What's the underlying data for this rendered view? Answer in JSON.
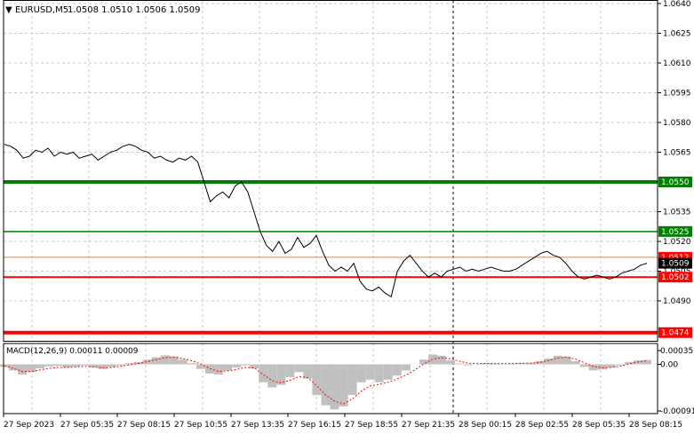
{
  "header": {
    "symbol": "EURUSD,M5",
    "ohlc": "1.0508 1.0510 1.0506 1.0509"
  },
  "macd_header": {
    "label": "MACD(12,26,9) 0.00011 0.00009"
  },
  "colors": {
    "grid": "#c8c8c8",
    "price_line": "#000000",
    "support_green": "#007f00",
    "support_red": "#ff0000",
    "macd_hist": "#c0c0c0",
    "macd_signal": "#ff0000",
    "bid_label": "#000000",
    "ask_line": "#ff7f27"
  },
  "chart_data": [
    {
      "type": "line",
      "title": "EURUSD,M5",
      "ylim": [
        1.0474,
        1.064
      ],
      "y_ticks": [
        "1.0640",
        "1.0625",
        "1.0610",
        "1.0595",
        "1.0580",
        "1.0565",
        "1.0550",
        "1.0535",
        "1.0520",
        "1.0505",
        "1.0490"
      ],
      "x_ticks": [
        "27 Sep 2023",
        "27 Sep 05:35",
        "27 Sep 08:15",
        "27 Sep 10:55",
        "27 Sep 13:35",
        "27 Sep 16:15",
        "27 Sep 18:55",
        "27 Sep 21:35",
        "28 Sep 00:15",
        "28 Sep 02:55",
        "28 Sep 05:35",
        "28 Sep 08:15"
      ],
      "series": [
        {
          "values": [
            1.0569,
            1.0568,
            1.0566,
            1.0562,
            1.0563,
            1.0566,
            1.0565,
            1.0567,
            1.0563,
            1.0565,
            1.0564,
            1.0565,
            1.0562,
            1.0563,
            1.0564,
            1.0561,
            1.0563,
            1.0565,
            1.0566,
            1.0568,
            1.0569,
            1.0568,
            1.0566,
            1.0565,
            1.0562,
            1.0563,
            1.0561,
            1.056,
            1.0562,
            1.0561,
            1.0563,
            1.056,
            1.055,
            1.054,
            1.0543,
            1.0545,
            1.0542,
            1.0548,
            1.055,
            1.0545,
            1.0535,
            1.0525,
            1.0518,
            1.0515,
            1.052,
            1.0514,
            1.0516,
            1.0522,
            1.0517,
            1.0519,
            1.0523,
            1.0515,
            1.0508,
            1.0505,
            1.0507,
            1.0505,
            1.0509,
            1.05,
            1.0496,
            1.0495,
            1.0497,
            1.0494,
            1.0492,
            1.0505,
            1.051,
            1.0513,
            1.0509,
            1.0505,
            1.0502,
            1.0504,
            1.0502,
            1.0505,
            1.0506,
            1.0507,
            1.0505,
            1.0506,
            1.0505,
            1.0506,
            1.0507,
            1.0506,
            1.0505,
            1.0505,
            1.0506,
            1.0508,
            1.051,
            1.0512,
            1.0514,
            1.0515,
            1.0513,
            1.0512,
            1.0509,
            1.0505,
            1.0502,
            1.0501,
            1.0502,
            1.0503,
            1.0502,
            1.0501,
            1.0502,
            1.0504,
            1.0505,
            1.0506,
            1.0508,
            1.0509
          ]
        }
      ],
      "horizontal_levels": [
        {
          "label": "1.0550",
          "value": 1.055,
          "color": "#007f00",
          "style": "thick"
        },
        {
          "label": "1.0525",
          "value": 1.0525,
          "color": "#007f00",
          "style": "thin"
        },
        {
          "label": "1.0502",
          "value": 1.0502,
          "color": "#ff0000",
          "style": "medium"
        },
        {
          "label": "1.0474",
          "value": 1.0474,
          "color": "#ff0000",
          "style": "thick"
        }
      ],
      "current_price": {
        "label": "1.0509",
        "value": 1.0509
      },
      "ask_level": {
        "label": "1.0512",
        "value": 1.0512
      },
      "grid": true
    },
    {
      "type": "bar",
      "title": "MACD(12,26,9) 0.00011 0.00009",
      "ylim": [
        -0.00091,
        0.00035
      ],
      "y_ticks": [
        "0.00035",
        "0.00",
        "-0.00091"
      ],
      "series": [
        {
          "name": "MACD",
          "values": [
            -5e-05,
            -0.00012,
            -0.0002,
            -0.00015,
            -8e-05,
            -4e-05,
            -3e-05,
            -6e-05,
            -4e-05,
            -2e-05,
            -6e-05,
            -9e-05,
            -5e-05,
            -2e-05,
            3e-05,
            6e-05,
            0.00012,
            0.00018,
            0.00023,
            0.0002,
            0.00012,
            3e-05,
            -9e-05,
            -0.00018,
            -0.0002,
            -0.00012,
            -6e-05,
            -2e-05,
            -8e-05,
            -0.00035,
            -0.00045,
            -0.0004,
            -0.00025,
            -0.00015,
            -0.00028,
            -0.0006,
            -0.0008,
            -0.00088,
            -0.00082,
            -0.0006,
            -0.00035,
            -0.0003,
            -0.00035,
            -0.0003,
            -0.00022,
            -0.00012,
            0.0,
            0.00012,
            0.00025,
            0.00022,
            0.0001,
            2e-05,
            -2e-05,
            1e-05,
            3e-05,
            2e-05,
            1e-05,
            2e-05,
            3e-05,
            4e-05,
            8e-05,
            0.00015,
            0.00022,
            0.0002,
            8e-05,
            -5e-05,
            -0.00012,
            -0.0001,
            -6e-05,
            -2e-05,
            6e-05,
            0.0001,
            0.00011
          ]
        },
        {
          "name": "Signal",
          "values": [
            -3e-05,
            -8e-05,
            -0.00014,
            -0.00014,
            -0.00011,
            -8e-05,
            -6e-05,
            -6e-05,
            -5e-05,
            -4e-05,
            -5e-05,
            -7e-05,
            -6e-05,
            -4e-05,
            -1e-05,
            2e-05,
            7e-05,
            0.00012,
            0.00017,
            0.00018,
            0.00015,
            9e-05,
            1e-05,
            -8e-05,
            -0.00014,
            -0.00013,
            -0.0001,
            -6e-05,
            -7e-05,
            -0.0002,
            -0.00032,
            -0.00036,
            -0.00031,
            -0.00024,
            -0.00026,
            -0.00042,
            -0.0006,
            -0.00072,
            -0.00077,
            -0.00068,
            -0.00052,
            -0.00042,
            -0.00039,
            -0.00035,
            -0.00029,
            -0.00021,
            -0.00011,
            1e-05,
            0.00013,
            0.00017,
            0.00014,
            8e-05,
            3e-05,
            2e-05,
            2e-05,
            2e-05,
            2e-05,
            2e-05,
            3e-05,
            3e-05,
            5e-05,
            0.0001,
            0.00016,
            0.00018,
            0.00013,
            4e-05,
            -4e-05,
            -7e-05,
            -6e-05,
            -4e-05,
            1e-05,
            6e-05,
            9e-05
          ]
        }
      ]
    }
  ]
}
